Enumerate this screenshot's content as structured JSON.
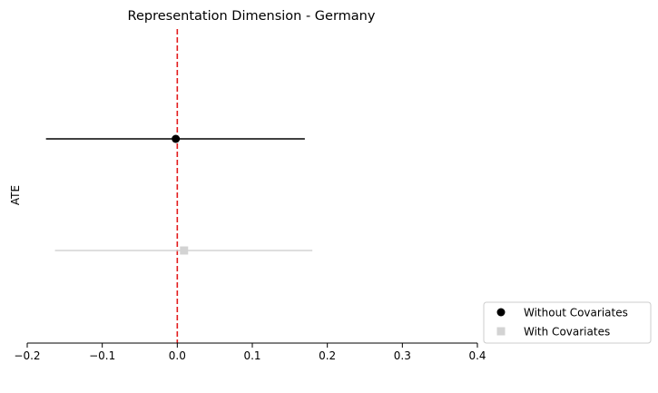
{
  "chart_data": {
    "type": "scatter",
    "title": "Representation Dimension - Germany",
    "xlabel": "",
    "ylabel": "ATE",
    "xlim": [
      -0.2,
      0.4
    ],
    "xticks": [
      -0.2,
      -0.1,
      0.0,
      0.1,
      0.2,
      0.3,
      0.4
    ],
    "xtick_labels": [
      "−0.2",
      "−0.1",
      "0.0",
      "0.1",
      "0.2",
      "0.3",
      "0.4"
    ],
    "reference_line": {
      "x": 0.0,
      "color": "#e31a1c",
      "style": "dashed"
    },
    "grid": false,
    "legend_position": "lower-right outside",
    "series": [
      {
        "name": "Without Covariates",
        "estimate": -0.002,
        "ci_low": -0.175,
        "ci_high": 0.17,
        "marker": "circle",
        "color": "#000000"
      },
      {
        "name": "With Covariates",
        "estimate": 0.009,
        "ci_low": -0.163,
        "ci_high": 0.18,
        "marker": "square",
        "color": "#d3d3d3"
      }
    ]
  }
}
